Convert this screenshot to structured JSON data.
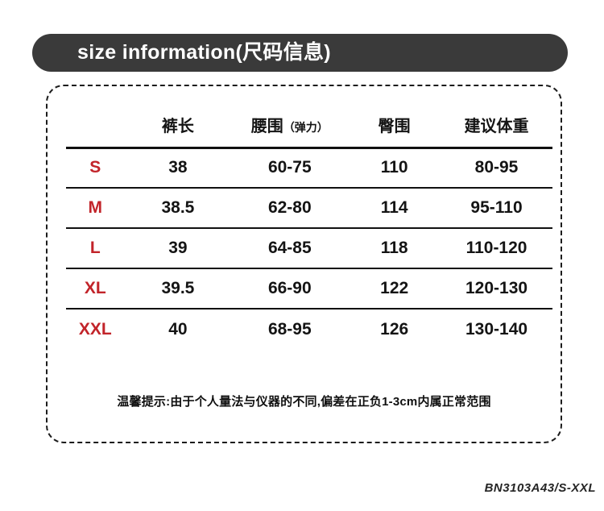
{
  "title": "size information(尺码信息)",
  "chart_data": {
    "type": "table",
    "title": "size information(尺码信息)",
    "columns": [
      "",
      "裤长",
      "腰围",
      "臀围",
      "建议体重"
    ],
    "waist_column_note": "（弹力）",
    "rows": [
      [
        "S",
        "38",
        "60-75",
        "110",
        "80-95"
      ],
      [
        "M",
        "38.5",
        "62-80",
        "114",
        "95-110"
      ],
      [
        "L",
        "39",
        "64-85",
        "118",
        "110-120"
      ],
      [
        "XL",
        "39.5",
        "66-90",
        "122",
        "120-130"
      ],
      [
        "XXL",
        "40",
        "68-95",
        "126",
        "130-140"
      ]
    ]
  },
  "footnote": "温馨提示:由于个人量法与仪器的不同,偏差在正负1-3cm内属正常范围",
  "product_code": "BN3103A43/S-XXL",
  "colors": {
    "header_bg": "#3a3a3a",
    "header_text": "#ffffff",
    "size_label": "#c2242a",
    "body_text": "#141414"
  }
}
